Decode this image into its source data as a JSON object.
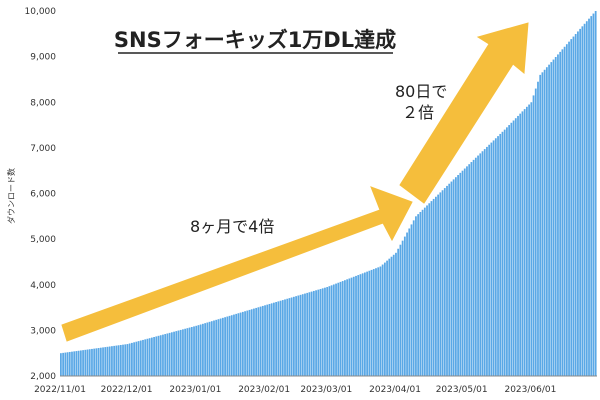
{
  "chart_data": {
    "type": "bar",
    "title": "SNSフォーキッズ1万DL達成",
    "xlabel": "",
    "ylabel": "ダウンロード数",
    "ylim": [
      2000,
      10000
    ],
    "yticks": [
      "2,000",
      "3,000",
      "4,000",
      "5,000",
      "6,000",
      "7,000",
      "8,000",
      "9,000",
      "10,000"
    ],
    "ytick_values": [
      2000,
      3000,
      4000,
      5000,
      6000,
      7000,
      8000,
      9000,
      10000
    ],
    "xticks": [
      "2022/11/01",
      "2022/12/01",
      "2023/01/01",
      "2023/02/01",
      "2023/03/01",
      "2023/04/01",
      "2023/05/01",
      "2023/06/01"
    ],
    "x_range": [
      "2022/11/01",
      "2023/06/30"
    ],
    "series": [
      {
        "color": "#5aa8e6",
        "key_points": [
          {
            "x": "2022/11/01",
            "y": 2500
          },
          {
            "x": "2022/12/01",
            "y": 2700
          },
          {
            "x": "2023/01/01",
            "y": 3100
          },
          {
            "x": "2023/02/01",
            "y": 3550
          },
          {
            "x": "2023/03/01",
            "y": 3950
          },
          {
            "x": "2023/03/25",
            "y": 4400
          },
          {
            "x": "2023/04/01",
            "y": 4700
          },
          {
            "x": "2023/04/10",
            "y": 5500
          },
          {
            "x": "2023/05/01",
            "y": 6500
          },
          {
            "x": "2023/05/20",
            "y": 7400
          },
          {
            "x": "2023/06/01",
            "y": 8000
          },
          {
            "x": "2023/06/05",
            "y": 8600
          },
          {
            "x": "2023/06/30",
            "y": 10000
          }
        ]
      }
    ],
    "annotations": [
      {
        "text_lines": [
          "8ヶ月で4倍"
        ]
      },
      {
        "text_lines": [
          "80日で",
          "２倍"
        ]
      }
    ],
    "arrow_color": "#f5be3c",
    "grid": false
  }
}
